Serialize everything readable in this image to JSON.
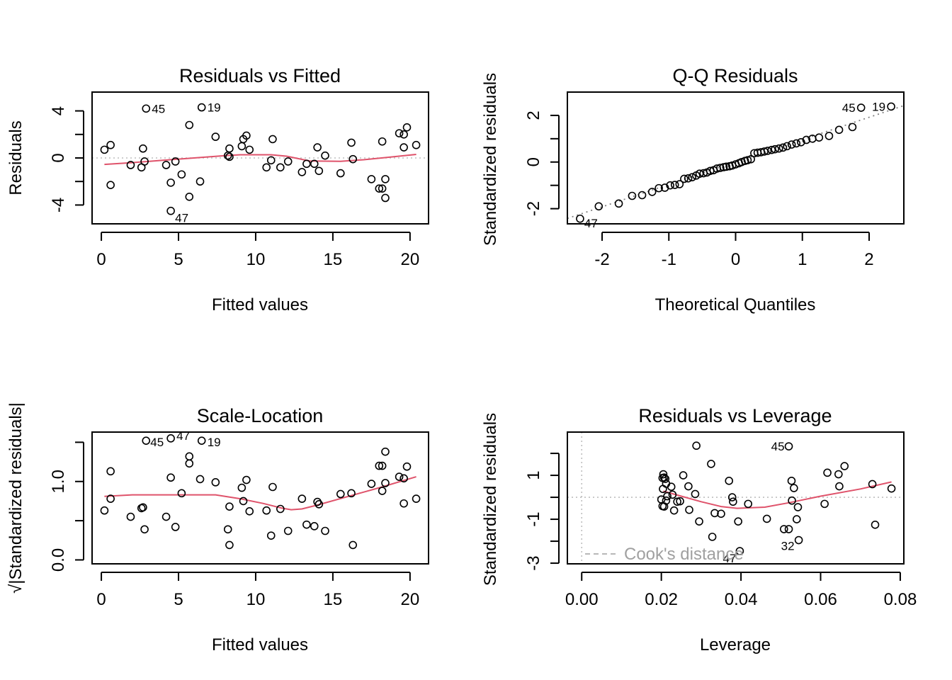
{
  "chart_data": [
    {
      "type": "scatter",
      "id": "resid-fitted",
      "title": "Residuals vs Fitted",
      "xlabel": "Fitted values",
      "ylabel": "Residuals",
      "xlim": [
        -0.6,
        21.2
      ],
      "ylim": [
        -5.6,
        5.6
      ],
      "xticks": [
        0,
        5,
        10,
        15,
        20
      ],
      "yticks": [
        -4,
        -2,
        0,
        2,
        4
      ],
      "ytick_labels": [
        "-4",
        "",
        "0",
        "",
        "4"
      ],
      "reference_line": 0,
      "points": [
        [
          0.2,
          0.7
        ],
        [
          0.6,
          1.1
        ],
        [
          0.6,
          -2.3
        ],
        [
          1.9,
          -0.6
        ],
        [
          2.6,
          -0.8
        ],
        [
          2.7,
          0.8
        ],
        [
          2.8,
          -0.3
        ],
        [
          2.9,
          4.2
        ],
        [
          4.2,
          -0.6
        ],
        [
          4.5,
          -2.1
        ],
        [
          4.5,
          -4.5
        ],
        [
          4.8,
          -0.3
        ],
        [
          5.2,
          -1.4
        ],
        [
          5.7,
          2.8
        ],
        [
          5.7,
          -3.3
        ],
        [
          6.4,
          -2.0
        ],
        [
          6.5,
          4.3
        ],
        [
          7.4,
          1.8
        ],
        [
          8.2,
          0.2
        ],
        [
          8.3,
          0.8
        ],
        [
          8.3,
          0.1
        ],
        [
          9.1,
          1.0
        ],
        [
          9.2,
          1.6
        ],
        [
          9.4,
          1.9
        ],
        [
          9.6,
          0.7
        ],
        [
          10.7,
          -0.8
        ],
        [
          11.0,
          -0.2
        ],
        [
          11.1,
          1.6
        ],
        [
          11.6,
          -0.8
        ],
        [
          12.1,
          -0.3
        ],
        [
          13.0,
          -1.2
        ],
        [
          13.3,
          -0.5
        ],
        [
          13.8,
          -0.5
        ],
        [
          14.0,
          0.9
        ],
        [
          14.1,
          -1.1
        ],
        [
          14.5,
          0.2
        ],
        [
          15.5,
          -1.3
        ],
        [
          16.2,
          1.3
        ],
        [
          16.3,
          -0.1
        ],
        [
          17.5,
          -1.8
        ],
        [
          18.0,
          -2.6
        ],
        [
          18.2,
          1.4
        ],
        [
          18.2,
          -2.6
        ],
        [
          18.4,
          -1.8
        ],
        [
          18.4,
          -3.4
        ],
        [
          19.3,
          2.1
        ],
        [
          19.6,
          2.0
        ],
        [
          19.6,
          0.9
        ],
        [
          19.8,
          2.6
        ],
        [
          20.4,
          1.1
        ]
      ],
      "labeled_points": [
        {
          "label": "45",
          "x": 2.9,
          "y": 4.2
        },
        {
          "label": "19",
          "x": 6.5,
          "y": 4.3
        },
        {
          "label": "47",
          "x": 4.5,
          "y": -4.5
        }
      ],
      "smooth": [
        [
          0.2,
          -0.55
        ],
        [
          2.0,
          -0.4
        ],
        [
          4.0,
          -0.2
        ],
        [
          6.0,
          0.0
        ],
        [
          8.0,
          0.2
        ],
        [
          9.0,
          0.27
        ],
        [
          11.0,
          0.27
        ],
        [
          12.0,
          0.15
        ],
        [
          13.5,
          -0.25
        ],
        [
          15.5,
          -0.28
        ],
        [
          17.0,
          -0.15
        ],
        [
          18.5,
          0.05
        ],
        [
          20.4,
          0.3
        ]
      ]
    },
    {
      "type": "scatter",
      "id": "qq",
      "title": "Q-Q Residuals",
      "xlabel": "Theoretical Quantiles",
      "ylabel": "Standardized residuals",
      "xlim": [
        -2.52,
        2.52
      ],
      "ylim": [
        -2.65,
        3.0
      ],
      "xticks": [
        -2,
        -1,
        0,
        1,
        2
      ],
      "yticks": [
        -2,
        -1,
        0,
        1,
        2
      ],
      "ytick_labels": [
        "-2",
        "",
        "0",
        "",
        "2"
      ],
      "reference_line": {
        "intercept": 0.0,
        "slope": 0.96
      },
      "points": [
        [
          -2.33,
          -2.43
        ],
        [
          -2.05,
          -1.9
        ],
        [
          -1.75,
          -1.78
        ],
        [
          -1.55,
          -1.45
        ],
        [
          -1.4,
          -1.42
        ],
        [
          -1.25,
          -1.28
        ],
        [
          -1.15,
          -1.12
        ],
        [
          -1.06,
          -1.1
        ],
        [
          -0.98,
          -1.0
        ],
        [
          -0.91,
          -0.98
        ],
        [
          -0.84,
          -0.95
        ],
        [
          -0.77,
          -0.72
        ],
        [
          -0.71,
          -0.7
        ],
        [
          -0.65,
          -0.65
        ],
        [
          -0.59,
          -0.58
        ],
        [
          -0.54,
          -0.5
        ],
        [
          -0.48,
          -0.48
        ],
        [
          -0.43,
          -0.45
        ],
        [
          -0.38,
          -0.38
        ],
        [
          -0.33,
          -0.35
        ],
        [
          -0.28,
          -0.28
        ],
        [
          -0.23,
          -0.25
        ],
        [
          -0.18,
          -0.22
        ],
        [
          -0.14,
          -0.2
        ],
        [
          -0.09,
          -0.18
        ],
        [
          -0.05,
          -0.15
        ],
        [
          0.0,
          -0.1
        ],
        [
          0.05,
          -0.05
        ],
        [
          0.09,
          0.0
        ],
        [
          0.14,
          0.05
        ],
        [
          0.18,
          0.08
        ],
        [
          0.23,
          0.12
        ],
        [
          0.28,
          0.38
        ],
        [
          0.33,
          0.4
        ],
        [
          0.38,
          0.42
        ],
        [
          0.43,
          0.45
        ],
        [
          0.48,
          0.48
        ],
        [
          0.54,
          0.52
        ],
        [
          0.59,
          0.55
        ],
        [
          0.65,
          0.58
        ],
        [
          0.71,
          0.62
        ],
        [
          0.77,
          0.68
        ],
        [
          0.84,
          0.75
        ],
        [
          0.91,
          0.8
        ],
        [
          0.98,
          0.85
        ],
        [
          1.06,
          0.95
        ],
        [
          1.15,
          1.0
        ],
        [
          1.25,
          1.05
        ],
        [
          1.4,
          1.12
        ],
        [
          1.55,
          1.38
        ],
        [
          1.75,
          1.5
        ],
        [
          1.88,
          2.33
        ],
        [
          2.33,
          2.38
        ]
      ],
      "labeled_points": [
        {
          "label": "45",
          "x": 1.88,
          "y": 2.33
        },
        {
          "label": "19",
          "x": 2.33,
          "y": 2.38
        },
        {
          "label": "47",
          "x": -2.33,
          "y": -2.43
        }
      ]
    },
    {
      "type": "scatter",
      "id": "scale-location",
      "title": "Scale-Location",
      "xlabel": "Fitted values",
      "ylabel": "√|Standardized residuals|",
      "xlim": [
        -0.6,
        21.2
      ],
      "ylim": [
        -0.05,
        1.63
      ],
      "xticks": [
        0,
        5,
        10,
        15,
        20
      ],
      "yticks": [
        0.0,
        0.5,
        1.0,
        1.5
      ],
      "ytick_labels": [
        "0.0",
        "",
        "1.0",
        ""
      ],
      "points": [
        [
          0.2,
          0.63
        ],
        [
          0.6,
          1.13
        ],
        [
          0.6,
          0.78
        ],
        [
          1.9,
          0.55
        ],
        [
          2.6,
          0.66
        ],
        [
          2.7,
          0.67
        ],
        [
          2.8,
          0.39
        ],
        [
          2.9,
          1.52
        ],
        [
          4.2,
          0.55
        ],
        [
          4.5,
          1.05
        ],
        [
          4.5,
          1.55
        ],
        [
          4.8,
          0.42
        ],
        [
          5.2,
          0.85
        ],
        [
          5.7,
          1.32
        ],
        [
          5.7,
          1.23
        ],
        [
          6.4,
          1.03
        ],
        [
          6.5,
          1.52
        ],
        [
          7.4,
          0.99
        ],
        [
          8.2,
          0.39
        ],
        [
          8.3,
          0.68
        ],
        [
          8.3,
          0.19
        ],
        [
          9.1,
          0.92
        ],
        [
          9.2,
          0.75
        ],
        [
          9.4,
          1.02
        ],
        [
          9.6,
          0.62
        ],
        [
          10.7,
          0.63
        ],
        [
          11.0,
          0.31
        ],
        [
          11.1,
          0.93
        ],
        [
          11.6,
          0.65
        ],
        [
          12.1,
          0.37
        ],
        [
          13.0,
          0.78
        ],
        [
          13.3,
          0.45
        ],
        [
          13.8,
          0.43
        ],
        [
          14.0,
          0.74
        ],
        [
          14.1,
          0.71
        ],
        [
          14.5,
          0.37
        ],
        [
          15.5,
          0.84
        ],
        [
          16.2,
          0.85
        ],
        [
          16.3,
          0.19
        ],
        [
          17.5,
          0.97
        ],
        [
          18.0,
          1.2
        ],
        [
          18.2,
          0.88
        ],
        [
          18.2,
          1.2
        ],
        [
          18.4,
          0.98
        ],
        [
          18.4,
          1.38
        ],
        [
          19.3,
          1.06
        ],
        [
          19.6,
          1.04
        ],
        [
          19.6,
          0.72
        ],
        [
          19.8,
          1.19
        ],
        [
          20.4,
          0.78
        ]
      ],
      "labeled_points": [
        {
          "label": "45",
          "x": 2.9,
          "y": 1.52
        },
        {
          "label": "47",
          "x": 4.5,
          "y": 1.55
        },
        {
          "label": "19",
          "x": 6.5,
          "y": 1.52
        }
      ],
      "smooth": [
        [
          0.2,
          0.81
        ],
        [
          2.0,
          0.83
        ],
        [
          4.0,
          0.83
        ],
        [
          7.4,
          0.83
        ],
        [
          9.0,
          0.78
        ],
        [
          10.5,
          0.72
        ],
        [
          11.7,
          0.66
        ],
        [
          12.3,
          0.64
        ],
        [
          13.0,
          0.65
        ],
        [
          14.0,
          0.7
        ],
        [
          16.0,
          0.81
        ],
        [
          18.0,
          0.92
        ],
        [
          20.4,
          1.06
        ]
      ]
    },
    {
      "type": "scatter",
      "id": "resid-leverage",
      "title": "Residuals vs Leverage",
      "xlabel": "Leverage",
      "ylabel": "Standardized residuals",
      "xlim": [
        -0.0036,
        0.0809
      ],
      "ylim": [
        -3.03,
        2.97
      ],
      "xticks": [
        0.0,
        0.02,
        0.04,
        0.06,
        0.08
      ],
      "xtick_labels": [
        "0.00",
        "0.02",
        "0.04",
        "0.06",
        "0.08"
      ],
      "yticks": [
        -3,
        -2,
        -1,
        0,
        1,
        2
      ],
      "ytick_labels": [
        "-3",
        "",
        "-1",
        "",
        "1",
        ""
      ],
      "reference_lines": {
        "h": 0,
        "v": 0
      },
      "legend": {
        "label": "Cook's distance",
        "position": "bottom-left"
      },
      "points": [
        [
          0.0205,
          1.05
        ],
        [
          0.0203,
          0.88
        ],
        [
          0.0207,
          0.9
        ],
        [
          0.021,
          0.84
        ],
        [
          0.0212,
          0.62
        ],
        [
          0.0204,
          0.38
        ],
        [
          0.02,
          -0.1
        ],
        [
          0.0203,
          -0.4
        ],
        [
          0.0207,
          -0.42
        ],
        [
          0.0212,
          -0.15
        ],
        [
          0.0215,
          0.05
        ],
        [
          0.0225,
          0.48
        ],
        [
          0.0228,
          0.12
        ],
        [
          0.0232,
          -0.6
        ],
        [
          0.024,
          -0.2
        ],
        [
          0.0247,
          -0.18
        ],
        [
          0.0255,
          1.0
        ],
        [
          0.0268,
          0.5
        ],
        [
          0.027,
          -0.57
        ],
        [
          0.0285,
          0.15
        ],
        [
          0.0288,
          2.35
        ],
        [
          0.0295,
          -1.1
        ],
        [
          0.0325,
          1.52
        ],
        [
          0.0328,
          -1.8
        ],
        [
          0.0334,
          -0.72
        ],
        [
          0.035,
          -0.75
        ],
        [
          0.037,
          0.75
        ],
        [
          0.0378,
          0.0
        ],
        [
          0.038,
          -0.2
        ],
        [
          0.0393,
          -1.1
        ],
        [
          0.0397,
          -2.45
        ],
        [
          0.0418,
          -0.3
        ],
        [
          0.0465,
          -0.98
        ],
        [
          0.0508,
          -1.45
        ],
        [
          0.052,
          -1.45
        ],
        [
          0.052,
          2.32
        ],
        [
          0.0527,
          0.75
        ],
        [
          0.0528,
          -0.15
        ],
        [
          0.0533,
          0.42
        ],
        [
          0.054,
          -1.0
        ],
        [
          0.0543,
          -0.45
        ],
        [
          0.0545,
          -1.95
        ],
        [
          0.061,
          -0.3
        ],
        [
          0.0617,
          1.12
        ],
        [
          0.0645,
          1.05
        ],
        [
          0.0647,
          0.5
        ],
        [
          0.066,
          1.42
        ],
        [
          0.073,
          0.6
        ],
        [
          0.0737,
          -1.25
        ],
        [
          0.0778,
          0.4
        ]
      ],
      "labeled_points": [
        {
          "label": "45",
          "x": 0.052,
          "y": 2.32
        },
        {
          "label": "32",
          "x": 0.0545,
          "y": -1.95
        },
        {
          "label": "47",
          "x": 0.0397,
          "y": -2.45
        }
      ],
      "smooth": [
        [
          0.0205,
          0.28
        ],
        [
          0.025,
          0.05
        ],
        [
          0.03,
          -0.2
        ],
        [
          0.035,
          -0.42
        ],
        [
          0.039,
          -0.5
        ],
        [
          0.046,
          -0.45
        ],
        [
          0.052,
          -0.25
        ],
        [
          0.06,
          0.05
        ],
        [
          0.07,
          0.38
        ],
        [
          0.0778,
          0.7
        ]
      ]
    }
  ]
}
